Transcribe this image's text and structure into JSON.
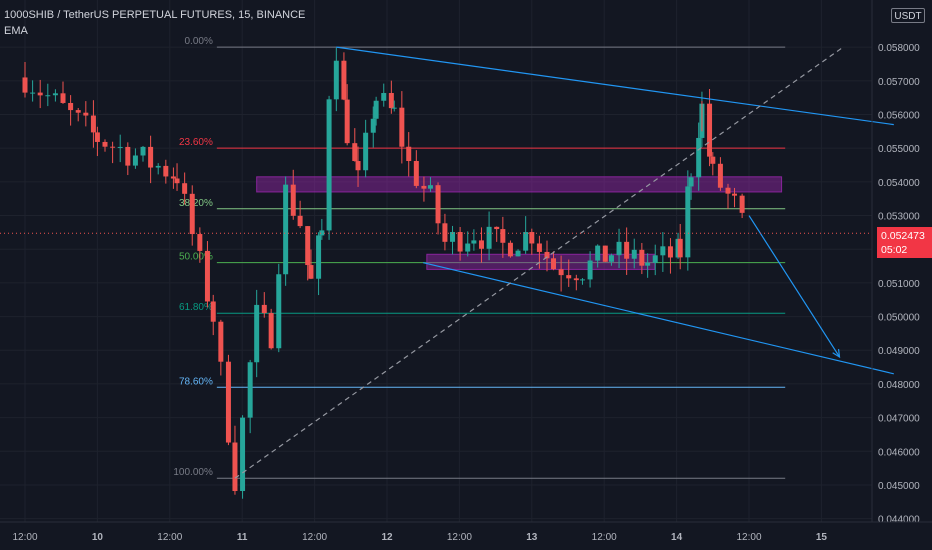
{
  "header": {
    "title": "1000SHIB / TetherUS PERPETUAL FUTURES, 15, BINANCE",
    "indicator": "EMA",
    "currency": "USDT"
  },
  "price_tag": {
    "price": "0.052473",
    "countdown": "05:02"
  },
  "colors": {
    "background": "#131722",
    "up": "#26a69a",
    "down": "#ef5350",
    "trendline": "#2196f3",
    "zone": "#9c27b0",
    "axis_text": "#b2b5be"
  },
  "chart_data": {
    "type": "candlestick",
    "symbol": "1000SHIB / TetherUS PERPETUAL FUTURES",
    "interval": "15",
    "exchange": "BINANCE",
    "ylim": [
      0.0439,
      0.0594
    ],
    "price_ticks": [
      "0.058000",
      "0.057000",
      "0.056000",
      "0.055000",
      "0.054000",
      "0.053000",
      "0.052000",
      "0.051000",
      "0.050000",
      "0.049000",
      "0.048000",
      "0.047000",
      "0.046000",
      "0.045000",
      "0.044000"
    ],
    "time_ticks": [
      {
        "label": "12:00",
        "t": 0
      },
      {
        "label": "10",
        "t": 1
      },
      {
        "label": "12:00",
        "t": 2
      },
      {
        "label": "11",
        "t": 3
      },
      {
        "label": "12:00",
        "t": 4
      },
      {
        "label": "12",
        "t": 5
      },
      {
        "label": "12:00",
        "t": 6
      },
      {
        "label": "13",
        "t": 7
      },
      {
        "label": "12:00",
        "t": 8
      },
      {
        "label": "14",
        "t": 9
      },
      {
        "label": "12:00",
        "t": 10
      },
      {
        "label": "15",
        "t": 11
      }
    ],
    "last_price": 0.052473,
    "fibonacci": [
      {
        "label": "0.00%",
        "price": 0.058,
        "color": "#787b86"
      },
      {
        "label": "23.60%",
        "price": 0.055,
        "color": "#f23645"
      },
      {
        "label": "38.20%",
        "price": 0.0532,
        "color": "#81c784"
      },
      {
        "label": "50.00%",
        "price": 0.0516,
        "color": "#4caf50"
      },
      {
        "label": "61.80%",
        "price": 0.0501,
        "color": "#089981"
      },
      {
        "label": "78.60%",
        "price": 0.0479,
        "color": "#64b5f6"
      },
      {
        "label": "100.00%",
        "price": 0.0452,
        "color": "#787b86"
      }
    ],
    "zones": [
      {
        "t_start": 3.2,
        "t_end": 10.45,
        "high": 0.05415,
        "low": 0.0537
      },
      {
        "t_start": 5.55,
        "t_end": 8.7,
        "high": 0.05185,
        "low": 0.0514
      }
    ],
    "key_points": [
      {
        "t": 0.0,
        "price": 0.0571
      },
      {
        "t": 1.0,
        "price": 0.0553
      },
      {
        "t": 2.1,
        "price": 0.0542
      },
      {
        "t": 2.6,
        "price": 0.05
      },
      {
        "t": 2.9,
        "price": 0.0452
      },
      {
        "t": 3.2,
        "price": 0.05
      },
      {
        "t": 3.4,
        "price": 0.0495
      },
      {
        "t": 3.6,
        "price": 0.0537
      },
      {
        "t": 3.8,
        "price": 0.0528
      },
      {
        "t": 3.95,
        "price": 0.051
      },
      {
        "t": 4.1,
        "price": 0.0525
      },
      {
        "t": 4.2,
        "price": 0.0567
      },
      {
        "t": 4.3,
        "price": 0.058
      },
      {
        "t": 4.45,
        "price": 0.0555
      },
      {
        "t": 4.6,
        "price": 0.054
      },
      {
        "t": 4.85,
        "price": 0.0565
      },
      {
        "t": 5.1,
        "price": 0.056
      },
      {
        "t": 5.3,
        "price": 0.0545
      },
      {
        "t": 5.6,
        "price": 0.0535
      },
      {
        "t": 5.8,
        "price": 0.0522
      },
      {
        "t": 6.2,
        "price": 0.0525
      },
      {
        "t": 6.6,
        "price": 0.0521
      },
      {
        "t": 7.0,
        "price": 0.0525
      },
      {
        "t": 7.3,
        "price": 0.0515
      },
      {
        "t": 7.7,
        "price": 0.0514
      },
      {
        "t": 8.1,
        "price": 0.0519
      },
      {
        "t": 8.6,
        "price": 0.0516
      },
      {
        "t": 9.05,
        "price": 0.0519
      },
      {
        "t": 9.2,
        "price": 0.0544
      },
      {
        "t": 9.35,
        "price": 0.0562
      },
      {
        "t": 9.5,
        "price": 0.0542
      },
      {
        "t": 9.8,
        "price": 0.0533
      },
      {
        "t": 9.95,
        "price": 0.0525
      }
    ],
    "trendlines": [
      {
        "t1": 4.3,
        "p1": 0.058,
        "t2": 12.0,
        "p2": 0.0557,
        "style": "solid"
      },
      {
        "t1": 5.5,
        "p1": 0.0516,
        "t2": 12.0,
        "p2": 0.0483,
        "style": "solid"
      },
      {
        "t1": 2.9,
        "p1": 0.0452,
        "t2": 11.3,
        "p2": 0.058,
        "style": "dashed"
      }
    ],
    "projection": {
      "t1": 10.0,
      "p1": 0.053,
      "t2": 11.25,
      "p2": 0.0488
    }
  }
}
